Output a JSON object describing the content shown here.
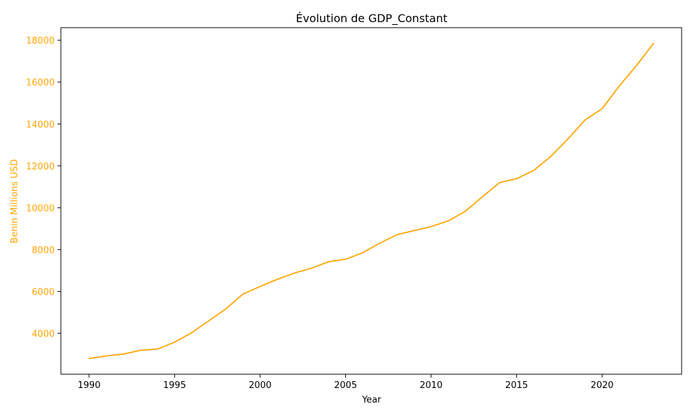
{
  "colors": {
    "series": "#ffa500",
    "axis": "#000000",
    "background": "#ffffff"
  },
  "chart_data": {
    "type": "line",
    "title": "Évolution de GDP_Constant",
    "xlabel": "Year",
    "ylabel": "Benin Millions USD",
    "xlim": [
      1988.35,
      2024.65
    ],
    "ylim": [
      2050,
      18600
    ],
    "x_ticks": [
      1990,
      1995,
      2000,
      2005,
      2010,
      2015,
      2020
    ],
    "y_ticks": [
      4000,
      6000,
      8000,
      10000,
      12000,
      14000,
      16000,
      18000
    ],
    "grid": false,
    "legend": "none",
    "x": [
      1990,
      1991,
      1992,
      1993,
      1994,
      1995,
      1996,
      1997,
      1998,
      1999,
      2000,
      2001,
      2002,
      2003,
      2004,
      2005,
      2006,
      2007,
      2008,
      2009,
      2010,
      2011,
      2012,
      2013,
      2014,
      2015,
      2016,
      2017,
      2018,
      2019,
      2020,
      2021,
      2022,
      2023
    ],
    "series": [
      {
        "values": [
          2800,
          2920,
          3010,
          3190,
          3250,
          3580,
          4030,
          4600,
          5170,
          5880,
          6240,
          6580,
          6880,
          7110,
          7420,
          7540,
          7850,
          8310,
          8710,
          8910,
          9100,
          9370,
          9830,
          10520,
          11200,
          11390,
          11780,
          12450,
          13280,
          14190,
          14730,
          15810,
          16780,
          17840
        ]
      }
    ]
  }
}
